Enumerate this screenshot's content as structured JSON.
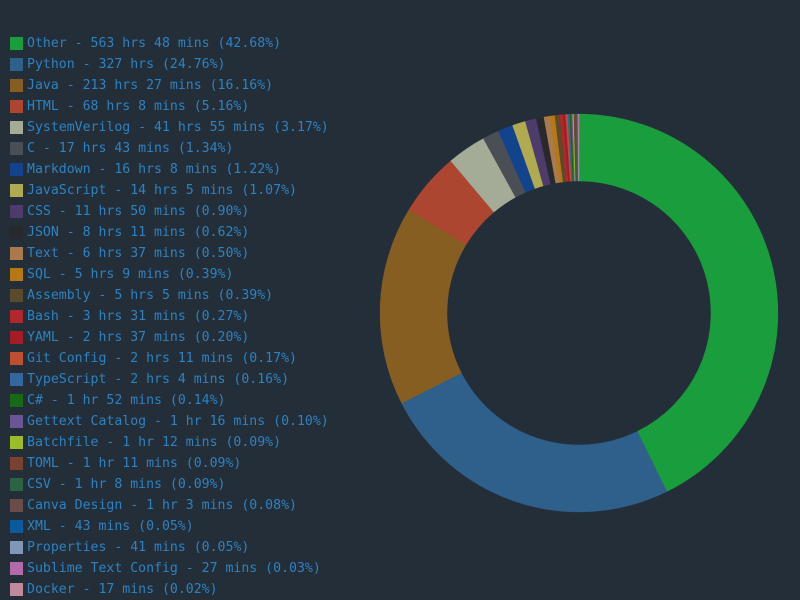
{
  "chart_data": {
    "type": "pie",
    "variant": "donut",
    "legend_position": "left",
    "slices": [
      {
        "label": "Other - 563 hrs 48 mins (42.68%)",
        "name": "Other",
        "value": 42.68,
        "color": "#1a9d3d"
      },
      {
        "label": "Python - 327 hrs (24.76%)",
        "name": "Python",
        "value": 24.76,
        "color": "#2f5f8b"
      },
      {
        "label": "Java - 213 hrs 27 mins (16.16%)",
        "name": "Java",
        "value": 16.16,
        "color": "#865e22"
      },
      {
        "label": "HTML - 68 hrs 8 mins (5.16%)",
        "name": "HTML",
        "value": 5.16,
        "color": "#ad4630"
      },
      {
        "label": "SystemVerilog - 41 hrs 55 mins (3.17%)",
        "name": "SystemVerilog",
        "value": 3.17,
        "color": "#a4ab96"
      },
      {
        "label": "C - 17 hrs 43 mins (1.34%)",
        "name": "C",
        "value": 1.34,
        "color": "#4a4e55"
      },
      {
        "label": "Markdown - 16 hrs 8 mins (1.22%)",
        "name": "Markdown",
        "value": 1.22,
        "color": "#14438d"
      },
      {
        "label": "JavaScript - 14 hrs 5 mins (1.07%)",
        "name": "JavaScript",
        "value": 1.07,
        "color": "#b0ab50"
      },
      {
        "label": "CSS - 11 hrs 50 mins (0.90%)",
        "name": "CSS",
        "value": 0.9,
        "color": "#4d3b6b"
      },
      {
        "label": "JSON - 8 hrs 11 mins (0.62%)",
        "name": "JSON",
        "value": 0.62,
        "color": "#27292d"
      },
      {
        "label": "Text - 6 hrs 37 mins (0.50%)",
        "name": "Text",
        "value": 0.5,
        "color": "#a97a4c"
      },
      {
        "label": "SQL - 5 hrs 9 mins (0.39%)",
        "name": "SQL",
        "value": 0.39,
        "color": "#b67815"
      },
      {
        "label": "Assembly - 5 hrs 5 mins (0.39%)",
        "name": "Assembly",
        "value": 0.39,
        "color": "#5a4b2c"
      },
      {
        "label": "Bash - 3 hrs 31 mins (0.27%)",
        "name": "Bash",
        "value": 0.27,
        "color": "#b0272c"
      },
      {
        "label": "YAML - 2 hrs 37 mins (0.20%)",
        "name": "YAML",
        "value": 0.2,
        "color": "#a41c27"
      },
      {
        "label": "Git Config - 2 hrs 11 mins (0.17%)",
        "name": "Git Config",
        "value": 0.17,
        "color": "#c04e30"
      },
      {
        "label": "TypeScript - 2 hrs 4 mins (0.16%)",
        "name": "TypeScript",
        "value": 0.16,
        "color": "#33679e"
      },
      {
        "label": "C# - 1 hr 52 mins (0.14%)",
        "name": "C#",
        "value": 0.14,
        "color": "#186a16"
      },
      {
        "label": "Gettext Catalog - 1 hr 16 mins (0.10%)",
        "name": "Gettext Catalog",
        "value": 0.1,
        "color": "#6a5595"
      },
      {
        "label": "Batchfile - 1 hr 12 mins (0.09%)",
        "name": "Batchfile",
        "value": 0.09,
        "color": "#9bbd2a"
      },
      {
        "label": "TOML - 1 hr 11 mins (0.09%)",
        "name": "TOML",
        "value": 0.09,
        "color": "#7a412e"
      },
      {
        "label": "CSV - 1 hr 8 mins (0.09%)",
        "name": "CSV",
        "value": 0.09,
        "color": "#2a6443"
      },
      {
        "label": "Canva Design - 1 hr 3 mins (0.08%)",
        "name": "Canva Design",
        "value": 0.08,
        "color": "#6a4c48"
      },
      {
        "label": "XML - 43 mins (0.05%)",
        "name": "XML",
        "value": 0.05,
        "color": "#0b5a9c"
      },
      {
        "label": "Properties - 41 mins (0.05%)",
        "name": "Properties",
        "value": 0.05,
        "color": "#7f98b8"
      },
      {
        "label": "Sublime Text Config - 27 mins (0.03%)",
        "name": "Sublime Text Config",
        "value": 0.03,
        "color": "#b36aab"
      },
      {
        "label": "Docker - 17 mins (0.02%)",
        "name": "Docker",
        "value": 0.02,
        "color": "#c08a9a"
      }
    ]
  },
  "colors": {
    "background": "#232e38",
    "legend_text": "#2d82c2"
  }
}
